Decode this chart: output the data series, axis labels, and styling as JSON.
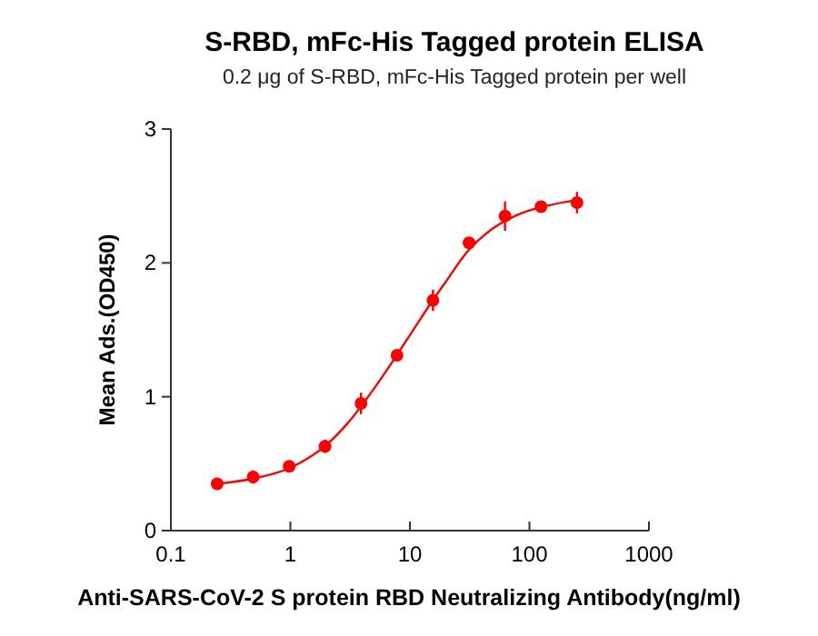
{
  "chart_data": {
    "type": "scatter",
    "title": "S-RBD,  mFc-His Tagged protein ELISA",
    "subtitle": "0.2 μg of S-RBD, mFc-His Tagged protein per well",
    "xlabel": "Anti-SARS-CoV-2 S protein RBD Neutralizing Antibody(ng/ml)",
    "ylabel": "Mean Ads.(OD450)",
    "log": "x",
    "xlim": [
      0.1,
      1000
    ],
    "xticks": [
      0.1,
      1,
      10,
      100,
      1000
    ],
    "ylim": [
      0,
      3
    ],
    "yticks": [
      0,
      1,
      2,
      3
    ],
    "grid": false,
    "series": [
      {
        "color": "#ff0000",
        "marker": "circle",
        "x": [
          0.244,
          0.488,
          0.977,
          1.95,
          3.9,
          7.8,
          15.6,
          31.25,
          62.5,
          125,
          250
        ],
        "values": [
          0.35,
          0.4,
          0.48,
          0.63,
          0.95,
          1.31,
          1.72,
          2.15,
          2.35,
          2.42,
          2.45
        ],
        "errors": [
          0.03,
          0.05,
          0.03,
          0.05,
          0.08,
          0.03,
          0.08,
          0.04,
          0.11,
          0.04,
          0.08
        ]
      },
      {
        "type": "line",
        "color": "#ff0000",
        "line_style": "solid",
        "x": [
          0.244,
          0.5,
          1,
          2,
          3,
          5,
          7,
          10,
          15,
          20,
          30,
          50,
          80,
          130,
          250
        ],
        "values": [
          0.35,
          0.39,
          0.47,
          0.64,
          0.8,
          1.06,
          1.25,
          1.46,
          1.7,
          1.86,
          2.08,
          2.26,
          2.36,
          2.42,
          2.47
        ]
      }
    ]
  }
}
